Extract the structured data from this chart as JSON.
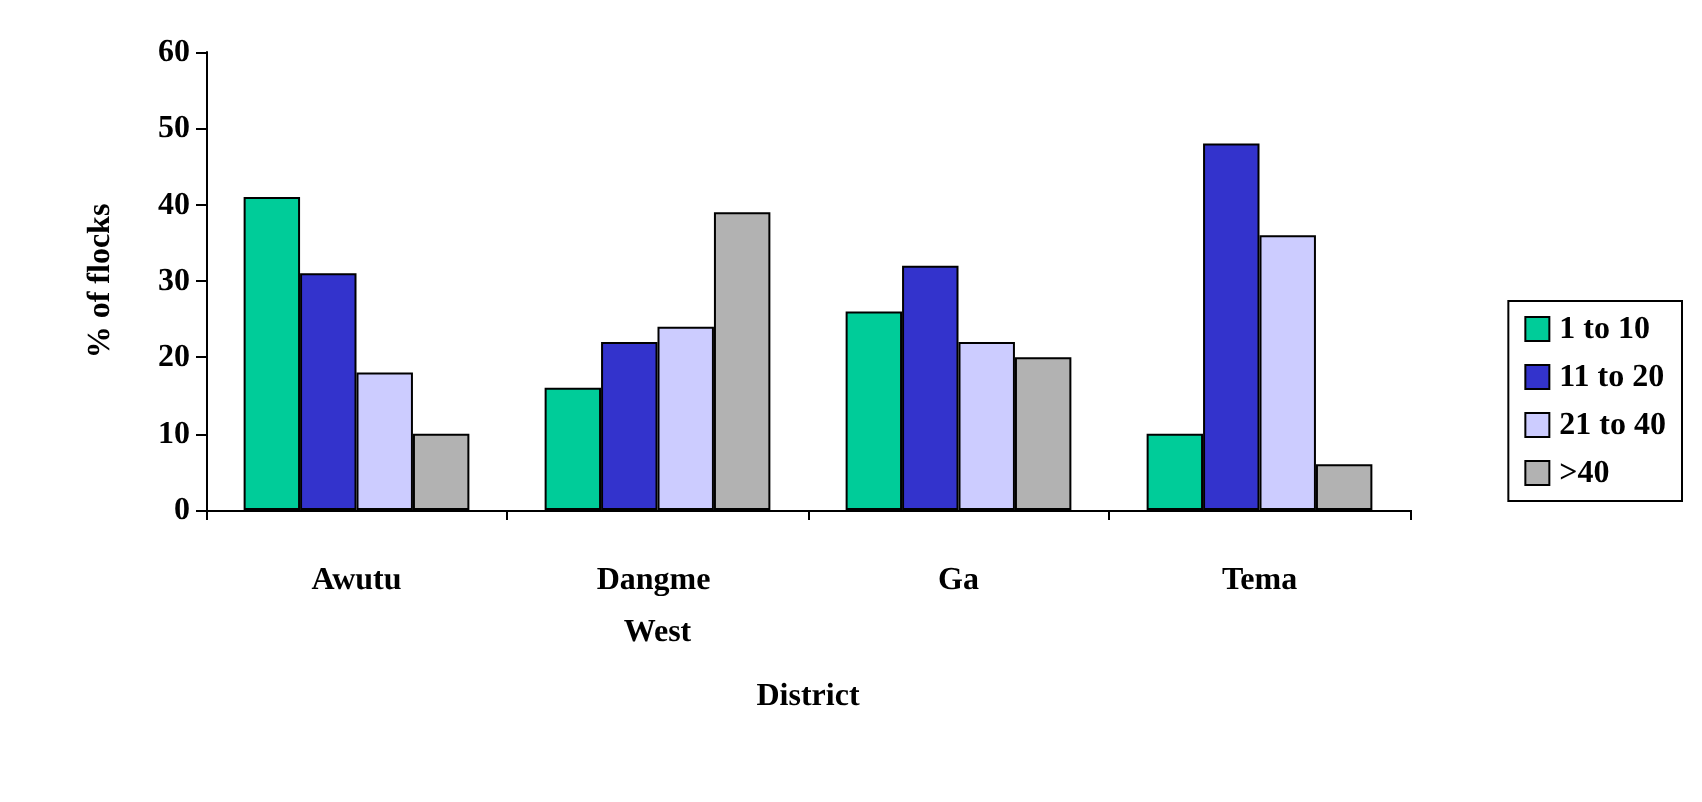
{
  "chart_data": {
    "type": "bar",
    "xlabel": "District",
    "ylabel": "% of flocks",
    "categories": [
      "Awutu",
      "Dangme West",
      "Ga",
      "Tema"
    ],
    "series": [
      {
        "name": "1 to 10",
        "color": "#00cc99",
        "values": [
          41,
          16,
          26,
          10
        ]
      },
      {
        "name": "11 to 20",
        "color": "#3333cc",
        "values": [
          31,
          22,
          32,
          48
        ]
      },
      {
        "name": "21 to 40",
        "color": "#ccccff",
        "values": [
          18,
          24,
          22,
          36
        ]
      },
      {
        "name": ">40",
        "color": "#b2b2b2",
        "values": [
          10,
          39,
          20,
          6
        ]
      }
    ],
    "ylim": [
      0,
      60
    ],
    "yticks": [
      0,
      10,
      20,
      30,
      40,
      50,
      60
    ],
    "grid": false,
    "legend": "right"
  }
}
